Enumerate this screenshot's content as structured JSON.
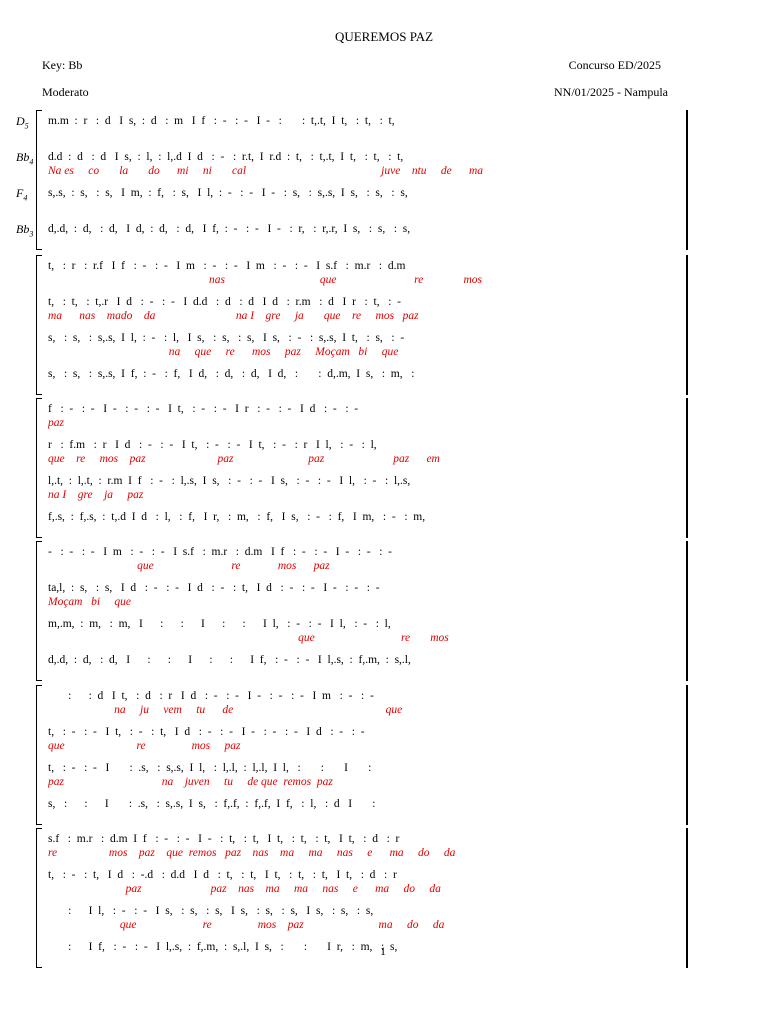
{
  "header": {
    "title": "QUEREMOS PAZ",
    "key": "Key: Bb",
    "contest": "Concurso ED/2025",
    "tempo": "Moderato",
    "reference": "NN/01/2025 - Nampula"
  },
  "systems": [
    {
      "voices": [
        {
          "part": {
            "note": "D",
            "octave": "5"
          },
          "notes": "m.m  :  r   :  d   I  s,  :  d   :  m   I  f   :  -   :  -   I  -   :       :  t,.t,  I  t,   :  t,   :  t,"
        },
        {
          "part": {
            "note": "Bb",
            "octave": "4"
          },
          "notes": "d.d  :  d   :  d   I  s,  :  l,  :  l,.d  I  d   :  -   :  r.t,  I  r.d  :  t,   :  t,.t,  I  t,   :  t,   :  t,",
          "lyrics": "Na es     co       la       do      mi     ni       cal                                               juve    ntu     de      ma"
        },
        {
          "part": {
            "note": "F",
            "octave": "4"
          },
          "notes": "s,.s,  :  s,   :  s,   I  m,  :  f,   :  s,   I  l,  :  -   :  -   I  -   :  s,   :  s,.s,  I  s,   :  s,   :  s,"
        },
        {
          "part": {
            "note": "Bb",
            "octave": "3"
          },
          "notes": "d,.d,  :  d,   :  d,   I  d,  :  d,   :  d,   I  f,  :  -   :  -   I  -   :  r,   :  r,.r,  I  s,   :  s,   :  s,"
        }
      ]
    },
    {
      "voices": [
        {
          "notes": "t,   :  r   :  r.f   I  f   :  -   :  -   I  m   :  -   :  -   I  m   :  -   :  -   I  s.f   :  m.r   :  d.m",
          "lyrics": "                                                        nas                                 que                           re              mos"
        },
        {
          "notes": "t,   :  t,   :  t,.r   I  d   :  -   :  -   I  d.d   :  d   :  d   I  d   :  r.m   :  d   I  r   :  t,   :  -",
          "lyrics": "ma      nas    mado    da                            na I    gre     ja       que    re     mos   paz"
        },
        {
          "notes": "s,   :  s,   :  s,.s,  I  l,  :  -   :  l,   I  s,   :  s,   :  s,   I  s,   :  -   :  s,.s,  I  t,   :  s,   :  -",
          "lyrics": "                                          na     que     re      mos     paz     Moçam   bi     que"
        },
        {
          "notes": "s,   :  s,   :  s,.s,  I  f,  :  -   :  f,   I  d,   :  d,   :  d,   I  d,   :       :  d,.m,  I  s,   :  m,   :"
        }
      ]
    },
    {
      "voices": [
        {
          "notes": "f   :  -   :  -   I  -   :  -   :  -   I  t,   :  -   :  -   I  r   :  -   :  -   I  d   :  -   :  -",
          "lyrics": "paz"
        },
        {
          "notes": "r   :  f.m   :  r   I  d   :  -   :  -   I  t,   :  -   :  -   I  t,   :  -   :  r   I  l,   :  -   :  l,",
          "lyrics": "que    re     mos    paz                         paz                          paz                        paz      em"
        },
        {
          "notes": "l,.t,  :  l,.t,  :  r.m  I  f   :  -   :  l,.s,  I  s,   :  -   :  -   I  s,   :  -   :  -   I  l,   :  -   :  l,.s,",
          "lyrics": "na I    gre    ja     paz"
        },
        {
          "notes": "f,.s,  :  f,.s,  :  t,.d  I  d   :  l,   :  f,   I  r,   :  m,   :  f,   I  s,   :  -   :  f,   I  m,   :  -   :  m,"
        }
      ]
    },
    {
      "voices": [
        {
          "notes": "-   :  -   :  -   I  m   :  -   :  -   I  s.f   :  m.r   :  d.m   I  f   :  -   :  -   I  -   :  -   :  -",
          "lyrics": "                               que                           re             mos      paz"
        },
        {
          "notes": "ta,l,  :  s,   :  s,   I  d   :  -   :  -   I  d   :  -   :  t,   I  d   :  -   :  -   I  -   :  -   :  -",
          "lyrics": "Moçam   bi     que"
        },
        {
          "notes": "m,.m,  :  m,   :  m,   I      :      :      I      :      :      I  l,   :  -   :  -   I  l,   :  -   :  l,",
          "lyrics": "                                                                                       que                              re       mos"
        },
        {
          "notes": "d,.d,  :  d,   :  d,   I      :      :      I      :      :      I  f,   :  -   :  -   I  l,.s,  :  f,.m,  :  s,.l,"
        }
      ]
    },
    {
      "voices": [
        {
          "notes": "       :      :  d   I  t,   :  d   :  r   I  d   :  -   :  -   I  -   :  -   :  -   I  m   :  -   :  -",
          "lyrics": "                       na     ju     vem     tu      de                                                     que"
        },
        {
          "notes": "t,   :  -   :  -   I  t,   :  -   :  t,   I  d   :  -   :  -   I  -   :  -   :  -   I  d   :  -   :  -",
          "lyrics": "que                         re                mos     paz"
        },
        {
          "notes": "t,   :  -   :  -   I       :  .s,   :  s,.s,  I  l,   :  l,.l,  :  l,.l,  I  l,   :       :       I       :",
          "lyrics": "paz                                  na    juven     tu     de que  remos  paz"
        },
        {
          "notes": "s,   :      :      I       :  .s,   :  s,.s,  I  s,   :  f,.f,  :  f,.f,  I  f,   :  l,   :  d   I       :"
        }
      ]
    },
    {
      "voices": [
        {
          "notes": "s.f   :  m.r   :  d.m  I  f   :  -   :  -   I  -   :  t,   :  t,   I  t,   :  t,   :  t,   I  t,   :  d   :  r",
          "lyrics": "re                  mos    paz    que  remos   paz    nas    ma     ma     nas     e      ma     do     da"
        },
        {
          "notes": "t,   :  -   :  t,   I  d   :  -.d   :  d.d   I  d   :  t,   :  t,   I  t,   :  t,   :  t,   I  t,   :  d   :  r",
          "lyrics": "                           paz                        paz    nas    ma     ma     nas     e      ma     do     da"
        },
        {
          "notes": "       :      I  l,   :  -   :  -   I  s,   :  s,   :  s,   I  s,   :  s,   :  s,   I  s,   :  s,   :  s,",
          "lyrics": "                         que                       re                mos    paz                          ma     do     da"
        },
        {
          "notes": "       :      I  f,   :  -   :  -   I  l,.s,  :  f,.m,  :  s,.l,  I  s,   :       :       I  r,   :  m,   :  s,"
        }
      ]
    }
  ],
  "footer": {
    "page": "1"
  }
}
